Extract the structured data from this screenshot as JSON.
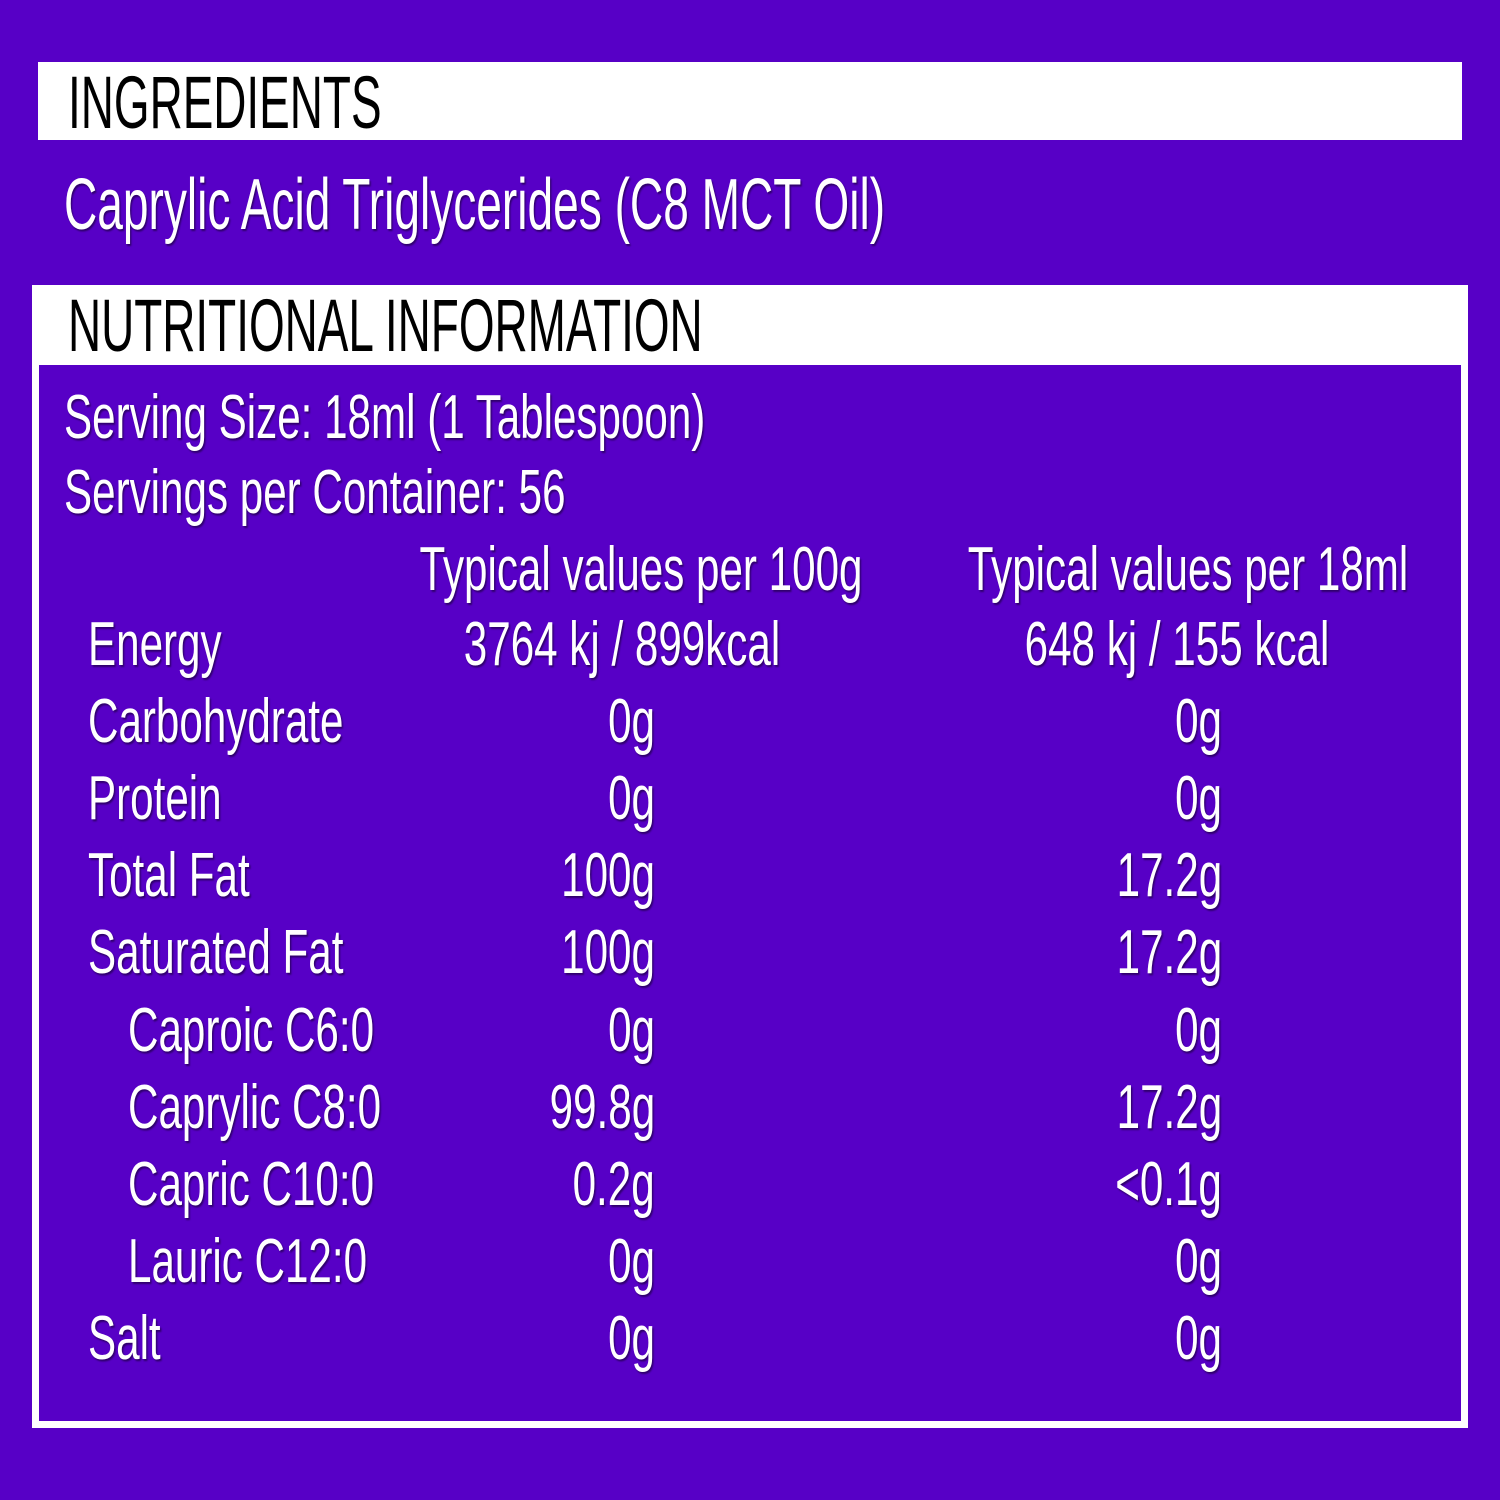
{
  "ingredients": {
    "title": "INGREDIENTS",
    "text": "Caprylic Acid Triglycerides (C8 MCT Oil)"
  },
  "nutrition": {
    "title": "NUTRITIONAL INFORMATION",
    "serving_size": "Serving Size: 18ml (1 Tablespoon)",
    "servings_per_container": "Servings per Container: 56",
    "columns": [
      "Typical values per 100g",
      "Typical values per 18ml"
    ],
    "rows": [
      [
        "Energy",
        "3764 kj / 899kcal",
        "648 kj / 155 kcal"
      ],
      [
        "Carbohydrate",
        "0g",
        "0g"
      ],
      [
        "Protein",
        "0g",
        "0g"
      ],
      [
        "Total Fat",
        "100g",
        "17.2g"
      ],
      [
        "Saturated Fat",
        "100g",
        "17.2g"
      ],
      [
        "Caproic C6:0",
        "0g",
        "0g"
      ],
      [
        "Caprylic C8:0",
        "99.8g",
        "17.2g"
      ],
      [
        "Capric C10:0",
        "0.2g",
        "<0.1g"
      ],
      [
        "Lauric C12:0",
        "0g",
        "0g"
      ],
      [
        "Salt",
        "0g",
        "0g"
      ]
    ]
  }
}
